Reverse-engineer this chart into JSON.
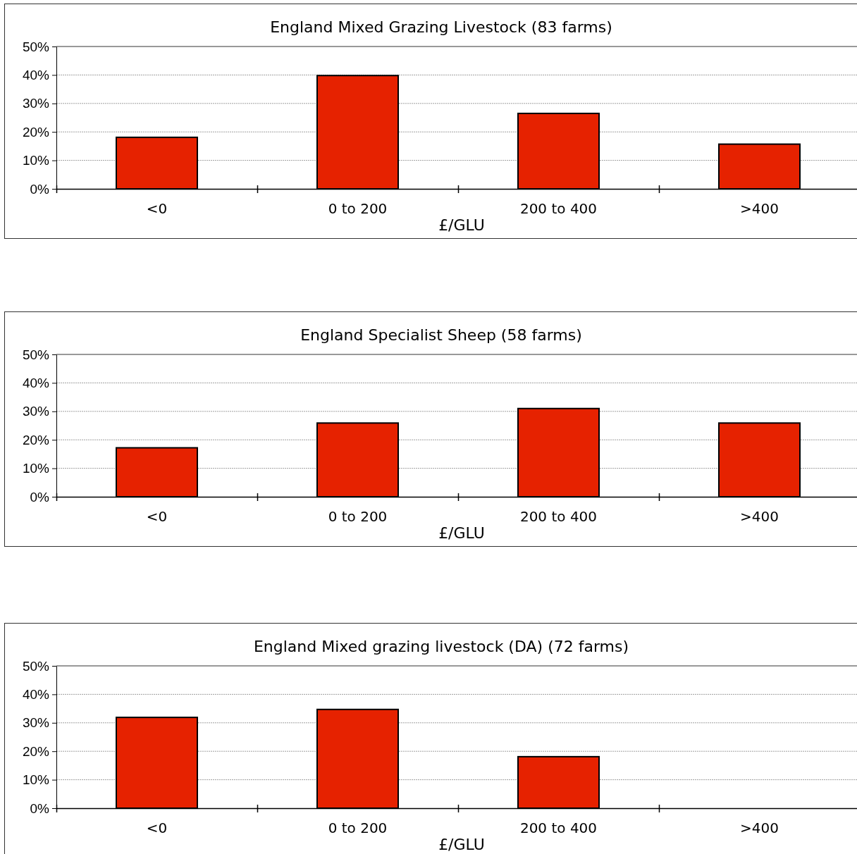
{
  "chart_data": [
    {
      "type": "bar",
      "title": "England Mixed Grazing Livestock (83 farms)",
      "xlabel": "£/GLU",
      "categories": [
        "<0",
        "0 to 200",
        "200 to 400",
        ">400"
      ],
      "values": [
        18.1,
        39.8,
        26.5,
        15.7
      ],
      "color": "#e62200",
      "ylim": [
        0,
        50
      ],
      "yticks": [
        {
          "value": 0,
          "label": "0%"
        },
        {
          "value": 10,
          "label": "10%"
        },
        {
          "value": 20,
          "label": "20%"
        },
        {
          "value": 30,
          "label": "30%"
        },
        {
          "value": 40,
          "label": "40%"
        },
        {
          "value": 50,
          "label": "50%"
        }
      ],
      "grid": "y"
    },
    {
      "type": "bar",
      "title": "England Specialist Sheep (58 farms)",
      "xlabel": "£/GLU",
      "categories": [
        "<0",
        "0 to 200",
        "200 to 400",
        ">400"
      ],
      "values": [
        17.2,
        25.9,
        31.0,
        25.9
      ],
      "color": "#e62200",
      "ylim": [
        0,
        50
      ],
      "yticks": [
        {
          "value": 0,
          "label": "0%"
        },
        {
          "value": 10,
          "label": "10%"
        },
        {
          "value": 20,
          "label": "20%"
        },
        {
          "value": 30,
          "label": "30%"
        },
        {
          "value": 40,
          "label": "40%"
        },
        {
          "value": 50,
          "label": "50%"
        }
      ],
      "grid": "y"
    },
    {
      "type": "bar",
      "title": "England Mixed grazing livestock (DA) (72 farms)",
      "xlabel": "£/GLU",
      "categories": [
        "<0",
        "0 to 200",
        "200 to 400",
        ">400"
      ],
      "values": [
        31.9,
        34.7,
        18.1,
        0
      ],
      "color": "#e62200",
      "ylim": [
        0,
        50
      ],
      "yticks": [
        {
          "value": 0,
          "label": "0%"
        },
        {
          "value": 10,
          "label": "10%"
        },
        {
          "value": 20,
          "label": "20%"
        },
        {
          "value": 30,
          "label": "30%"
        },
        {
          "value": 40,
          "label": "40%"
        },
        {
          "value": 50,
          "label": "50%"
        }
      ],
      "grid": "y"
    }
  ]
}
